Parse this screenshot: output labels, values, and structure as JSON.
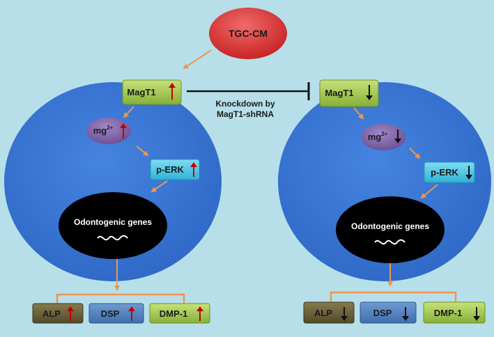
{
  "source": {
    "label": "TGC-CM"
  },
  "inhibition": {
    "line1": "Knockdown by",
    "line2": "MagT1-shRNA"
  },
  "left_cell": {
    "magt1": "MagT1",
    "mg": "mg",
    "mg_sup": "2+",
    "perk": "p-ERK",
    "genes": "Odontogenic genes",
    "alp": "ALP",
    "dsp": "DSP",
    "dmp1": "DMP-1",
    "trend": "up"
  },
  "right_cell": {
    "magt1": "MagT1",
    "mg": "mg",
    "mg_sup": "2+",
    "perk": "p-ERK",
    "genes": "Odontogenic genes",
    "alp": "ALP",
    "dsp": "DSP",
    "dmp1": "DMP-1",
    "trend": "down"
  },
  "colors": {
    "background": "#b7dfe9",
    "cell": "#3a78d8",
    "connector": "#ee9650",
    "up_arrow": "#c00000",
    "down_arrow": "#111111",
    "magt1_box": "#98c140",
    "mg_oval": "#8064a2",
    "perk_box": "#4dc6e3",
    "genes_oval": "#000000",
    "alp_box": "#6a5f3a",
    "dsp_box": "#4f81bd",
    "dmp1_box": "#98c140",
    "source_oval": "#e23a3a"
  }
}
